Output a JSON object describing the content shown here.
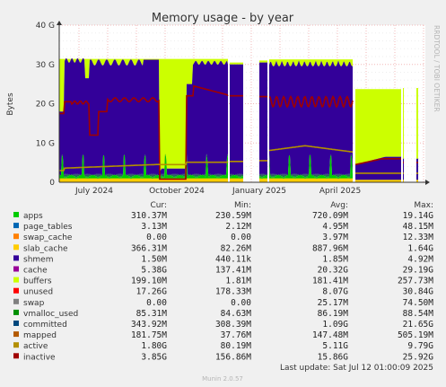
{
  "chart_data": {
    "type": "area",
    "title": "Memory usage - by year",
    "ylabel": "Bytes",
    "side_label": "RRDTOOL / TOBI OETIKER",
    "y_ticks": [
      "0",
      "10 G",
      "20 G",
      "30 G",
      "40 G"
    ],
    "ylim": [
      0,
      40
    ],
    "y_unit": "GB",
    "x_ticks": [
      "July 2024",
      "October 2024",
      "January 2025",
      "April 2025"
    ],
    "grid": true,
    "legend_position": "bottom",
    "columns": [
      "Cur:",
      "Min:",
      "Avg:",
      "Max:"
    ],
    "series": [
      {
        "name": "apps",
        "color": "#00cc00",
        "cur": "310.37M",
        "min": "230.59M",
        "avg": "720.09M",
        "max": "19.14G"
      },
      {
        "name": "page_tables",
        "color": "#0066b3",
        "cur": "3.13M",
        "min": "2.12M",
        "avg": "4.95M",
        "max": "48.15M"
      },
      {
        "name": "swap_cache",
        "color": "#ff8000",
        "cur": "0.00",
        "min": "0.00",
        "avg": "3.97M",
        "max": "12.33M"
      },
      {
        "name": "slab_cache",
        "color": "#ffcc00",
        "cur": "366.31M",
        "min": "82.26M",
        "avg": "887.96M",
        "max": "1.64G"
      },
      {
        "name": "shmem",
        "color": "#330099",
        "cur": "1.50M",
        "min": "440.11k",
        "avg": "1.85M",
        "max": "4.92M"
      },
      {
        "name": "cache",
        "color": "#990099",
        "cur": "5.38G",
        "min": "137.41M",
        "avg": "20.32G",
        "max": "29.19G"
      },
      {
        "name": "buffers",
        "color": "#ccff00",
        "cur": "199.10M",
        "min": "1.81M",
        "avg": "181.41M",
        "max": "257.73M"
      },
      {
        "name": "unused",
        "color": "#ff0000",
        "cur": "17.26G",
        "min": "178.33M",
        "avg": "8.07G",
        "max": "30.84G"
      },
      {
        "name": "swap",
        "color": "#808080",
        "cur": "0.00",
        "min": "0.00",
        "avg": "25.17M",
        "max": "74.50M"
      },
      {
        "name": "vmalloc_used",
        "color": "#008f00",
        "cur": "85.31M",
        "min": "84.63M",
        "avg": "86.19M",
        "max": "88.54M"
      },
      {
        "name": "committed",
        "color": "#00487d",
        "cur": "343.92M",
        "min": "308.39M",
        "avg": "1.09G",
        "max": "21.65G"
      },
      {
        "name": "mapped",
        "color": "#b35a00",
        "cur": "181.75M",
        "min": "37.76M",
        "avg": "147.48M",
        "max": "505.19M"
      },
      {
        "name": "active",
        "color": "#b38f00",
        "cur": "1.80G",
        "min": "80.19M",
        "avg": "5.11G",
        "max": "9.79G"
      },
      {
        "name": "inactive",
        "color": "#a00000",
        "cur": "3.85G",
        "min": "156.86M",
        "avg": "15.86G",
        "max": "25.92G"
      }
    ],
    "last_update": "Last update: Sat Jul 12 01:00:09 2025",
    "footer": "Munin 2.0.57"
  }
}
